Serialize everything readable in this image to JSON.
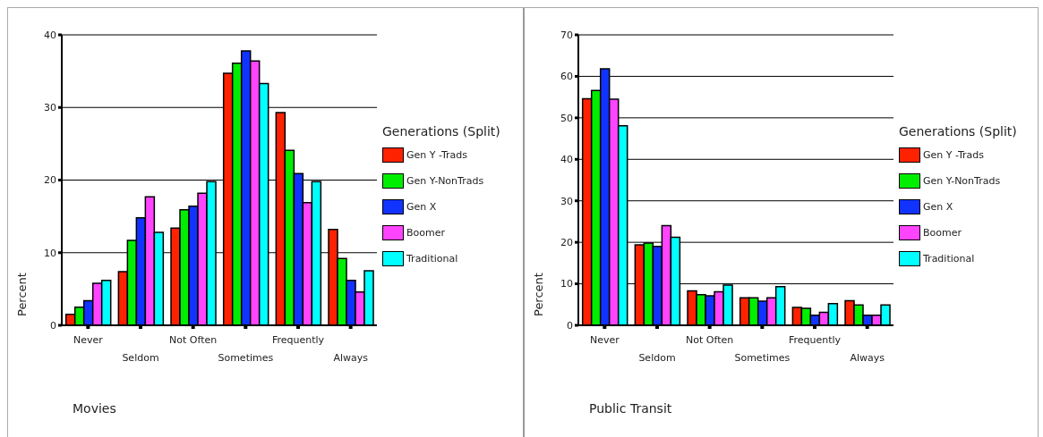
{
  "chart_data": [
    {
      "type": "bar",
      "title": "Movies",
      "ylabel": "Percent",
      "legend_title": "Generations (Split)",
      "categories": [
        "Never",
        "Seldom",
        "Not Often",
        "Sometimes",
        "Frequently",
        "Always"
      ],
      "series": [
        {
          "name": "Gen Y -Trads",
          "color": "#ff2200",
          "values": [
            1.5,
            7.4,
            13.4,
            34.7,
            29.3,
            13.2
          ]
        },
        {
          "name": "Gen Y-NonTrads",
          "color": "#00ee00",
          "values": [
            2.5,
            11.7,
            15.9,
            36.1,
            24.1,
            9.2
          ]
        },
        {
          "name": "Gen X",
          "color": "#1133ff",
          "values": [
            3.4,
            14.8,
            16.4,
            37.8,
            20.9,
            6.2
          ]
        },
        {
          "name": "Boomer",
          "color": "#ff44ff",
          "values": [
            5.8,
            17.7,
            18.2,
            36.4,
            16.9,
            4.6
          ]
        },
        {
          "name": "Traditional",
          "color": "#00ffff",
          "values": [
            6.2,
            12.8,
            19.8,
            33.3,
            19.8,
            7.5
          ]
        }
      ],
      "ylim": [
        0,
        40
      ],
      "yticks": [
        0,
        10,
        20,
        30,
        40
      ],
      "grid": "y",
      "legend": "right"
    },
    {
      "type": "bar",
      "title": "Public Transit",
      "ylabel": "Percent",
      "legend_title": "Generations (Split)",
      "categories": [
        "Never",
        "Seldom",
        "Not Often",
        "Sometimes",
        "Frequently",
        "Always"
      ],
      "series": [
        {
          "name": "Gen Y -Trads",
          "color": "#ff2200",
          "values": [
            54.6,
            19.4,
            8.3,
            6.6,
            4.3,
            5.9
          ]
        },
        {
          "name": "Gen Y-NonTrads",
          "color": "#00ee00",
          "values": [
            56.6,
            19.8,
            7.4,
            6.6,
            4.1,
            4.9
          ]
        },
        {
          "name": "Gen X",
          "color": "#1133ff",
          "values": [
            61.8,
            19.0,
            7.1,
            5.8,
            2.4,
            2.4
          ]
        },
        {
          "name": "Boomer",
          "color": "#ff44ff",
          "values": [
            54.5,
            24.0,
            8.1,
            6.6,
            3.1,
            2.4
          ]
        },
        {
          "name": "Traditional",
          "color": "#00ffff",
          "values": [
            48.1,
            21.2,
            9.7,
            9.3,
            5.2,
            4.9
          ]
        }
      ],
      "ylim": [
        0,
        70
      ],
      "yticks": [
        0,
        10,
        20,
        30,
        40,
        50,
        60,
        70
      ],
      "grid": "y",
      "legend": "right"
    }
  ]
}
